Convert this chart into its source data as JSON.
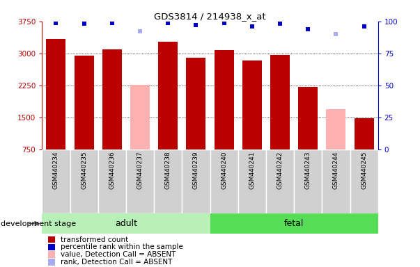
{
  "title": "GDS3814 / 214938_x_at",
  "samples": [
    "GSM440234",
    "GSM440235",
    "GSM440236",
    "GSM440237",
    "GSM440238",
    "GSM440239",
    "GSM440240",
    "GSM440241",
    "GSM440242",
    "GSM440243",
    "GSM440244",
    "GSM440245"
  ],
  "values": [
    3340,
    2940,
    3100,
    2260,
    3270,
    2900,
    3080,
    2840,
    2970,
    2210,
    1700,
    1490
  ],
  "absent": [
    false,
    false,
    false,
    true,
    false,
    false,
    false,
    false,
    false,
    false,
    true,
    false
  ],
  "ranks": [
    99,
    98,
    99,
    92,
    99,
    97,
    99,
    96,
    98,
    94,
    90,
    96
  ],
  "rank_absent": [
    false,
    false,
    false,
    true,
    false,
    false,
    false,
    false,
    false,
    false,
    true,
    false
  ],
  "ylim_min": 750,
  "ylim_max": 3750,
  "yticks": [
    750,
    1500,
    2250,
    3000,
    3750
  ],
  "right_yticks": [
    0,
    25,
    50,
    75,
    100
  ],
  "bar_color_present": "#bb0000",
  "bar_color_absent": "#ffb0b0",
  "rank_color_present": "#0000cc",
  "rank_color_absent": "#aaaaee",
  "adult_color": "#b8f0b8",
  "fetal_color": "#55dd55",
  "label_bg_color": "#d0d0d0",
  "stage_label": "development stage",
  "legend_items": [
    {
      "label": "transformed count",
      "color": "#bb0000"
    },
    {
      "label": "percentile rank within the sample",
      "color": "#0000cc"
    },
    {
      "label": "value, Detection Call = ABSENT",
      "color": "#ffb0b0"
    },
    {
      "label": "rank, Detection Call = ABSENT",
      "color": "#aaaaee"
    }
  ]
}
